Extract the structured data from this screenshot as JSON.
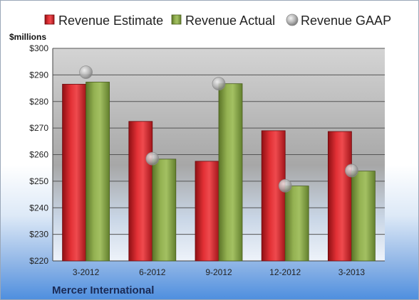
{
  "chart_data": {
    "type": "bar",
    "unit_label": "$millions",
    "company": "Mercer International",
    "categories": [
      "3-2012",
      "6-2012",
      "9-2012",
      "12-2012",
      "3-2013"
    ],
    "series": [
      {
        "name": "Revenue Estimate",
        "type": "bar",
        "color": "#d8262b",
        "values": [
          286.5,
          272.5,
          257.5,
          269,
          268.7
        ]
      },
      {
        "name": "Revenue Actual",
        "type": "bar",
        "color": "#8aa64b",
        "values": [
          287.3,
          258.3,
          286.7,
          248.2,
          253.8
        ]
      },
      {
        "name": "Revenue GAAP",
        "type": "scatter",
        "color": "#b0b0b0",
        "values": [
          291,
          258.5,
          286.7,
          248.3,
          254
        ]
      }
    ],
    "ylim": [
      220,
      300
    ],
    "yticks": [
      "$220",
      "$230",
      "$240",
      "$250",
      "$260",
      "$270",
      "$280",
      "$290",
      "$300"
    ],
    "ytick_values": [
      220,
      230,
      240,
      250,
      260,
      270,
      280,
      290,
      300
    ],
    "legend_position": "top",
    "grid": true
  }
}
